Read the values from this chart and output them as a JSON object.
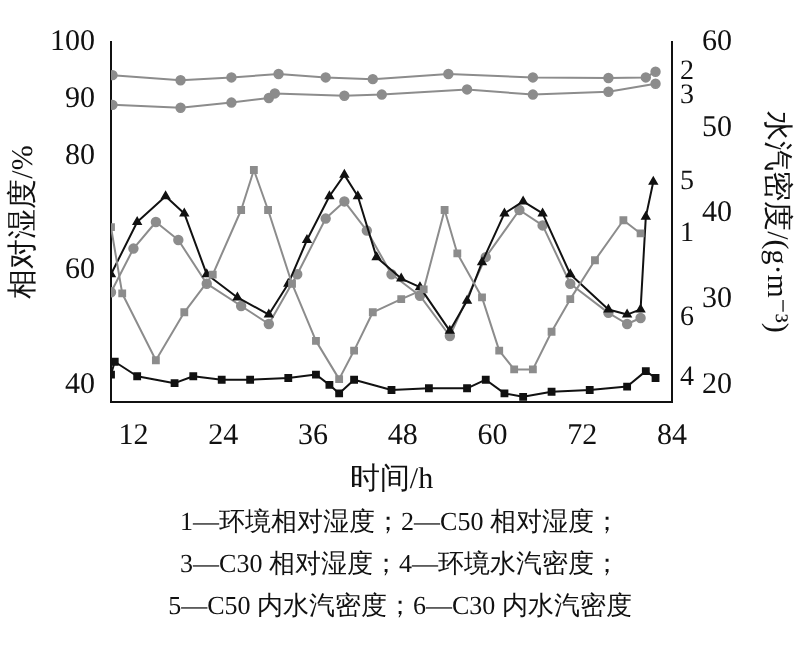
{
  "chart_data": {
    "type": "line",
    "xlabel": "时间/h",
    "ylabel": "相对湿度/%",
    "y2label": "水汽密度/(g·m⁻³)",
    "xlim": [
      9,
      84
    ],
    "xticks": [
      12,
      24,
      36,
      48,
      60,
      72,
      84
    ],
    "ylim": [
      37,
      100
    ],
    "yticks": [
      40,
      60,
      80,
      90,
      100
    ],
    "y2lim": [
      18,
      60
    ],
    "y2ticks": [
      20,
      30,
      40,
      50,
      60
    ],
    "grid": false,
    "legend": false,
    "line_style": "solid",
    "series": [
      {
        "name": "1",
        "color": "#8c8c8c",
        "marker": "square",
        "x": [
          9,
          10.5,
          15,
          18.8,
          22.6,
          26.4,
          28.1,
          30,
          33.2,
          36.4,
          39.5,
          41.5,
          44,
          47.8,
          50.8,
          53.6,
          55.3,
          58.6,
          60.9,
          62.9,
          65.4,
          67.9,
          70.4,
          73.7,
          77.5,
          79.8
        ],
        "values": [
          67.6,
          56,
          44.3,
          52.7,
          59.3,
          70.6,
          77.6,
          70.6,
          57.7,
          47.7,
          41,
          46,
          52.7,
          55,
          56.7,
          70.6,
          63,
          55.3,
          46,
          42.7,
          42.7,
          49.3,
          55,
          61.8,
          68.8,
          66.5
        ]
      },
      {
        "name": "2",
        "color": "#8c8c8c",
        "marker": "circle",
        "x": [
          9.2,
          18.3,
          25.1,
          31.4,
          37.7,
          44,
          54.1,
          65.4,
          75.5,
          80.5,
          81.8
        ],
        "values": [
          94.2,
          93.3,
          93.8,
          94.4,
          93.8,
          93.5,
          94.4,
          93.8,
          93.7,
          93.8,
          94.8
        ]
      },
      {
        "name": "3",
        "color": "#8c8c8c",
        "marker": "circle",
        "x": [
          9.2,
          18.3,
          25.1,
          30.1,
          30.9,
          40.2,
          45.2,
          56.6,
          65.4,
          75.5,
          81.8
        ],
        "values": [
          89,
          88.5,
          89.4,
          90.2,
          91,
          90.6,
          90.8,
          91.7,
          90.8,
          91.3,
          92.7
        ]
      },
      {
        "name": "4",
        "color": "#111111",
        "marker": "square",
        "axis": "y2",
        "x": [
          9,
          9.5,
          12.5,
          17.5,
          20,
          23.8,
          27.6,
          32.7,
          36.4,
          38.2,
          39.5,
          41.5,
          46.5,
          51.5,
          56.6,
          59.1,
          61.6,
          64.1,
          67.9,
          73,
          78,
          80.5,
          81.8
        ],
        "values": [
          21.2,
          22.7,
          21,
          20.2,
          21,
          20.6,
          20.6,
          20.8,
          21.2,
          20,
          19,
          20.6,
          19.4,
          19.6,
          19.6,
          20.6,
          19,
          18.6,
          19.2,
          19.4,
          19.8,
          21.6,
          20.8
        ]
      },
      {
        "name": "5",
        "color": "#111111",
        "marker": "triangle",
        "axis": "y2",
        "x": [
          9,
          12.5,
          16.3,
          18.8,
          21.8,
          25.9,
          30.1,
          32.7,
          35.2,
          38.2,
          40.2,
          42,
          44.5,
          47.8,
          50.3,
          54.3,
          56.6,
          58.6,
          61.6,
          64.1,
          66.7,
          70.4,
          75.5,
          78,
          79.8,
          80.5,
          81.5
        ],
        "values": [
          32.9,
          39,
          42,
          40,
          32.9,
          30.2,
          28.2,
          31.8,
          36.9,
          42,
          44.5,
          42,
          34.9,
          32.4,
          31.4,
          26.3,
          29.8,
          34.3,
          40,
          41.4,
          40,
          32.9,
          28.8,
          28.2,
          28.8,
          39.6,
          43.7
        ]
      },
      {
        "name": "6",
        "color": "#8c8c8c",
        "marker": "circle",
        "axis": "y2",
        "x": [
          9,
          12,
          15,
          18,
          21.8,
          26.4,
          30.1,
          33.9,
          37.7,
          40.2,
          43.2,
          46.5,
          50.3,
          54.3,
          59.1,
          63.6,
          66.7,
          70.4,
          75.5,
          78,
          79.8
        ],
        "values": [
          30.8,
          35.9,
          39,
          36.9,
          31.8,
          29.2,
          27.1,
          32.9,
          39.4,
          41.4,
          38,
          32.9,
          30.4,
          25.7,
          34.9,
          40.4,
          38.6,
          31.8,
          28.4,
          27.1,
          27.8
        ]
      }
    ],
    "annotations": [
      "1—环境相对湿度；2—C50 相对湿度；",
      "3—C30 相对湿度；4—环境水汽密度；",
      "5—C50 内水汽密度；6—C30 内水汽密度"
    ]
  }
}
